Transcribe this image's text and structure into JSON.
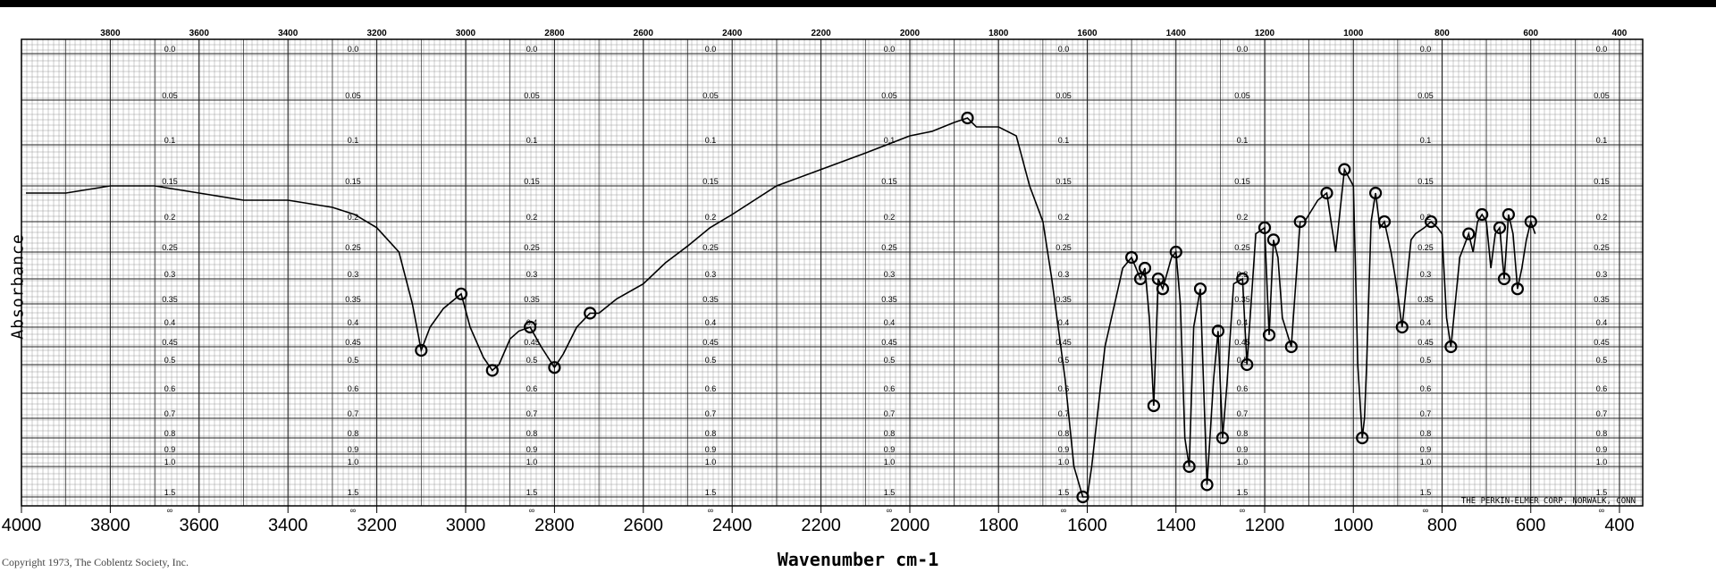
{
  "chart_data": {
    "type": "line",
    "title": "",
    "xlabel": "Wavenumber cm-1",
    "ylabel": "Absorbance",
    "xlim": [
      4000,
      400
    ],
    "ylim": [
      0.0,
      1.5
    ],
    "bottom_ticks": [
      4000,
      3800,
      3600,
      3400,
      3200,
      3000,
      2800,
      2600,
      2400,
      2200,
      2000,
      1800,
      1600,
      1400,
      1200,
      1000,
      800,
      600,
      400
    ],
    "top_ticks": [
      "3800",
      "3600",
      "3400",
      "3200",
      "3000",
      "2800",
      "2600",
      "2400",
      "2200",
      "2000",
      "1800",
      "1600",
      "1400",
      "1200",
      "1000",
      "800",
      "600",
      "400"
    ],
    "absorbance_scale": [
      "0.0",
      "0.05",
      "0.1",
      "0.15",
      "0.2",
      "0.25",
      "0.3",
      "0.35",
      "0.4",
      "0.45",
      "0.5",
      "0.6",
      "0.7",
      "0.8",
      "0.9",
      "1.0",
      "1.5",
      "∞"
    ],
    "grid": true,
    "series": [
      {
        "x": [
          3990,
          3960,
          3900,
          3800,
          3700,
          3600,
          3500,
          3400,
          3300,
          3250,
          3200,
          3150,
          3120,
          3100,
          3080,
          3050,
          3010,
          2990,
          2960,
          2940,
          2925,
          2900,
          2880,
          2855,
          2830,
          2800,
          2780,
          2750,
          2720,
          2700,
          2660,
          2600,
          2550,
          2500,
          2450,
          2400,
          2300,
          2200,
          2100,
          2000,
          1950,
          1900,
          1870,
          1850,
          1800,
          1760,
          1730,
          1700,
          1680,
          1650,
          1630,
          1610,
          1600,
          1590,
          1560,
          1520,
          1500,
          1480,
          1470,
          1460,
          1450,
          1440,
          1430,
          1410,
          1400,
          1390,
          1380,
          1370,
          1360,
          1345,
          1330,
          1315,
          1305,
          1295,
          1285,
          1270,
          1250,
          1240,
          1220,
          1200,
          1190,
          1180,
          1170,
          1160,
          1140,
          1120,
          1110,
          1100,
          1080,
          1060,
          1040,
          1020,
          1000,
          990,
          980,
          975,
          970,
          960,
          950,
          940,
          930,
          915,
          905,
          890,
          870,
          860,
          840,
          825,
          810,
          800,
          790,
          780,
          760,
          740,
          730,
          720,
          710,
          700,
          690,
          680,
          670,
          660,
          650,
          640,
          630,
          620,
          610,
          600,
          590
        ],
        "y": [
          0.16,
          0.16,
          0.16,
          0.15,
          0.15,
          0.16,
          0.17,
          0.17,
          0.18,
          0.19,
          0.21,
          0.25,
          0.35,
          0.46,
          0.4,
          0.36,
          0.33,
          0.4,
          0.48,
          0.52,
          0.5,
          0.43,
          0.41,
          0.4,
          0.45,
          0.51,
          0.47,
          0.4,
          0.37,
          0.37,
          0.34,
          0.31,
          0.27,
          0.24,
          0.21,
          0.19,
          0.15,
          0.13,
          0.11,
          0.09,
          0.085,
          0.075,
          0.07,
          0.08,
          0.08,
          0.09,
          0.15,
          0.2,
          0.3,
          0.55,
          1.0,
          1.5,
          1.5,
          1.0,
          0.45,
          0.28,
          0.26,
          0.3,
          0.28,
          0.38,
          0.65,
          0.3,
          0.32,
          0.26,
          0.25,
          0.35,
          0.8,
          1.0,
          0.4,
          0.32,
          1.3,
          0.55,
          0.41,
          0.8,
          0.57,
          0.31,
          0.3,
          0.5,
          0.22,
          0.21,
          0.42,
          0.23,
          0.26,
          0.38,
          0.45,
          0.2,
          0.2,
          0.19,
          0.17,
          0.16,
          0.25,
          0.13,
          0.15,
          0.5,
          0.8,
          0.7,
          0.5,
          0.2,
          0.16,
          0.21,
          0.2,
          0.25,
          0.3,
          0.4,
          0.23,
          0.22,
          0.21,
          0.2,
          0.21,
          0.22,
          0.38,
          0.45,
          0.26,
          0.22,
          0.25,
          0.2,
          0.19,
          0.2,
          0.28,
          0.22,
          0.21,
          0.3,
          0.19,
          0.22,
          0.32,
          0.28,
          0.23,
          0.2,
          0.22
        ]
      }
    ]
  },
  "footer": {
    "copyright": "Copyright 1973, The Coblentz Society, Inc.",
    "manufacturer": "THE PERKIN-ELMER CORP. NORWALK, CONN"
  }
}
